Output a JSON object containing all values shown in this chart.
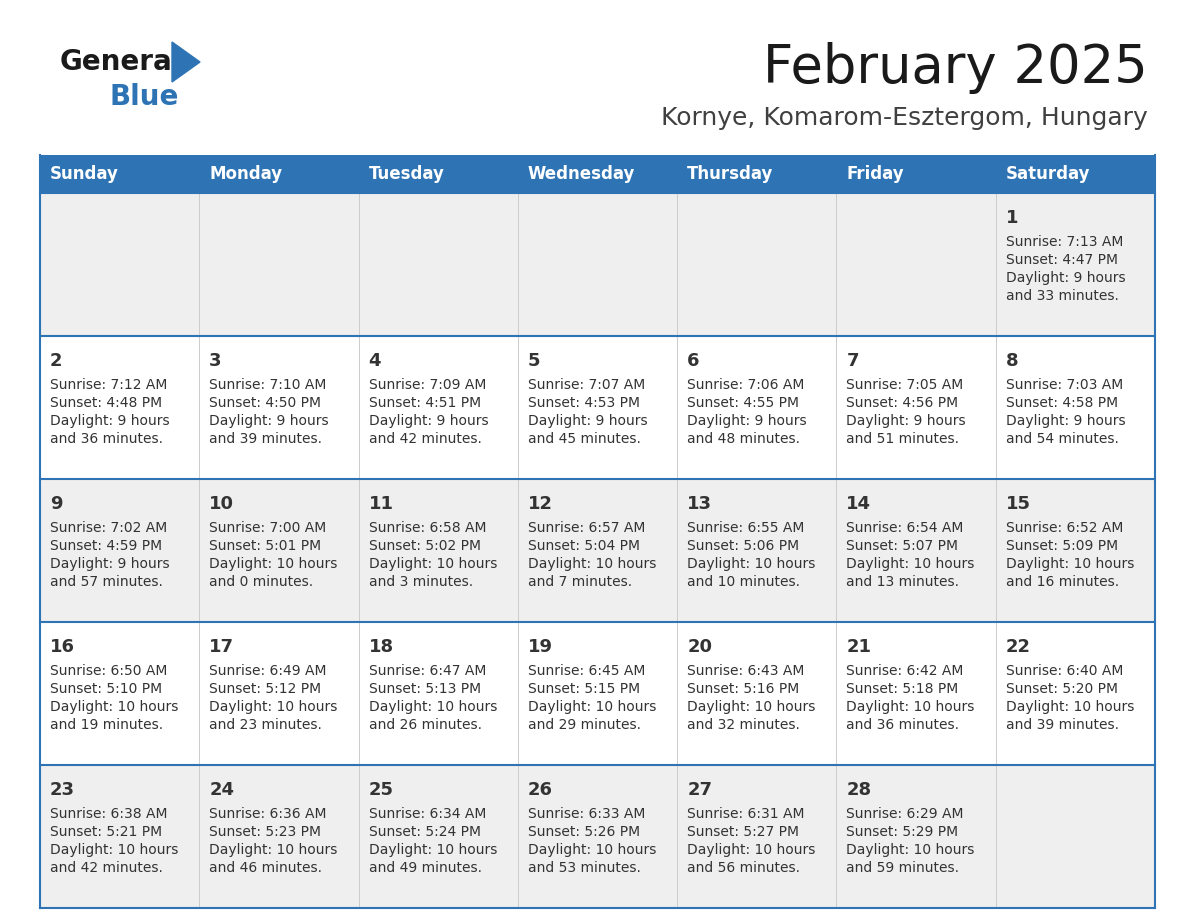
{
  "title": "February 2025",
  "subtitle": "Kornye, Komarom-Esztergom, Hungary",
  "days_of_week": [
    "Sunday",
    "Monday",
    "Tuesday",
    "Wednesday",
    "Thursday",
    "Friday",
    "Saturday"
  ],
  "header_bg": "#2E74B5",
  "header_text": "#FFFFFF",
  "row_bg_light": "#EFEFEF",
  "row_bg_white": "#FFFFFF",
  "cell_text_color": "#333333",
  "day_num_color": "#333333",
  "separator_color": "#2E74B5",
  "logo_general_color": "#1A1A1A",
  "logo_blue_color": "#2E74B5",
  "logo_triangle_color": "#2E74B5",
  "title_color": "#1A1A1A",
  "subtitle_color": "#404040",
  "calendar_data": [
    [
      null,
      null,
      null,
      null,
      null,
      null,
      {
        "day": 1,
        "sunrise": "7:13 AM",
        "sunset": "4:47 PM",
        "daylight_h": "9 hours",
        "daylight_m": "and 33 minutes."
      }
    ],
    [
      {
        "day": 2,
        "sunrise": "7:12 AM",
        "sunset": "4:48 PM",
        "daylight_h": "9 hours",
        "daylight_m": "and 36 minutes."
      },
      {
        "day": 3,
        "sunrise": "7:10 AM",
        "sunset": "4:50 PM",
        "daylight_h": "9 hours",
        "daylight_m": "and 39 minutes."
      },
      {
        "day": 4,
        "sunrise": "7:09 AM",
        "sunset": "4:51 PM",
        "daylight_h": "9 hours",
        "daylight_m": "and 42 minutes."
      },
      {
        "day": 5,
        "sunrise": "7:07 AM",
        "sunset": "4:53 PM",
        "daylight_h": "9 hours",
        "daylight_m": "and 45 minutes."
      },
      {
        "day": 6,
        "sunrise": "7:06 AM",
        "sunset": "4:55 PM",
        "daylight_h": "9 hours",
        "daylight_m": "and 48 minutes."
      },
      {
        "day": 7,
        "sunrise": "7:05 AM",
        "sunset": "4:56 PM",
        "daylight_h": "9 hours",
        "daylight_m": "and 51 minutes."
      },
      {
        "day": 8,
        "sunrise": "7:03 AM",
        "sunset": "4:58 PM",
        "daylight_h": "9 hours",
        "daylight_m": "and 54 minutes."
      }
    ],
    [
      {
        "day": 9,
        "sunrise": "7:02 AM",
        "sunset": "4:59 PM",
        "daylight_h": "9 hours",
        "daylight_m": "and 57 minutes."
      },
      {
        "day": 10,
        "sunrise": "7:00 AM",
        "sunset": "5:01 PM",
        "daylight_h": "10 hours",
        "daylight_m": "and 0 minutes."
      },
      {
        "day": 11,
        "sunrise": "6:58 AM",
        "sunset": "5:02 PM",
        "daylight_h": "10 hours",
        "daylight_m": "and 3 minutes."
      },
      {
        "day": 12,
        "sunrise": "6:57 AM",
        "sunset": "5:04 PM",
        "daylight_h": "10 hours",
        "daylight_m": "and 7 minutes."
      },
      {
        "day": 13,
        "sunrise": "6:55 AM",
        "sunset": "5:06 PM",
        "daylight_h": "10 hours",
        "daylight_m": "and 10 minutes."
      },
      {
        "day": 14,
        "sunrise": "6:54 AM",
        "sunset": "5:07 PM",
        "daylight_h": "10 hours",
        "daylight_m": "and 13 minutes."
      },
      {
        "day": 15,
        "sunrise": "6:52 AM",
        "sunset": "5:09 PM",
        "daylight_h": "10 hours",
        "daylight_m": "and 16 minutes."
      }
    ],
    [
      {
        "day": 16,
        "sunrise": "6:50 AM",
        "sunset": "5:10 PM",
        "daylight_h": "10 hours",
        "daylight_m": "and 19 minutes."
      },
      {
        "day": 17,
        "sunrise": "6:49 AM",
        "sunset": "5:12 PM",
        "daylight_h": "10 hours",
        "daylight_m": "and 23 minutes."
      },
      {
        "day": 18,
        "sunrise": "6:47 AM",
        "sunset": "5:13 PM",
        "daylight_h": "10 hours",
        "daylight_m": "and 26 minutes."
      },
      {
        "day": 19,
        "sunrise": "6:45 AM",
        "sunset": "5:15 PM",
        "daylight_h": "10 hours",
        "daylight_m": "and 29 minutes."
      },
      {
        "day": 20,
        "sunrise": "6:43 AM",
        "sunset": "5:16 PM",
        "daylight_h": "10 hours",
        "daylight_m": "and 32 minutes."
      },
      {
        "day": 21,
        "sunrise": "6:42 AM",
        "sunset": "5:18 PM",
        "daylight_h": "10 hours",
        "daylight_m": "and 36 minutes."
      },
      {
        "day": 22,
        "sunrise": "6:40 AM",
        "sunset": "5:20 PM",
        "daylight_h": "10 hours",
        "daylight_m": "and 39 minutes."
      }
    ],
    [
      {
        "day": 23,
        "sunrise": "6:38 AM",
        "sunset": "5:21 PM",
        "daylight_h": "10 hours",
        "daylight_m": "and 42 minutes."
      },
      {
        "day": 24,
        "sunrise": "6:36 AM",
        "sunset": "5:23 PM",
        "daylight_h": "10 hours",
        "daylight_m": "and 46 minutes."
      },
      {
        "day": 25,
        "sunrise": "6:34 AM",
        "sunset": "5:24 PM",
        "daylight_h": "10 hours",
        "daylight_m": "and 49 minutes."
      },
      {
        "day": 26,
        "sunrise": "6:33 AM",
        "sunset": "5:26 PM",
        "daylight_h": "10 hours",
        "daylight_m": "and 53 minutes."
      },
      {
        "day": 27,
        "sunrise": "6:31 AM",
        "sunset": "5:27 PM",
        "daylight_h": "10 hours",
        "daylight_m": "and 56 minutes."
      },
      {
        "day": 28,
        "sunrise": "6:29 AM",
        "sunset": "5:29 PM",
        "daylight_h": "10 hours",
        "daylight_m": "and 59 minutes."
      },
      null
    ]
  ]
}
